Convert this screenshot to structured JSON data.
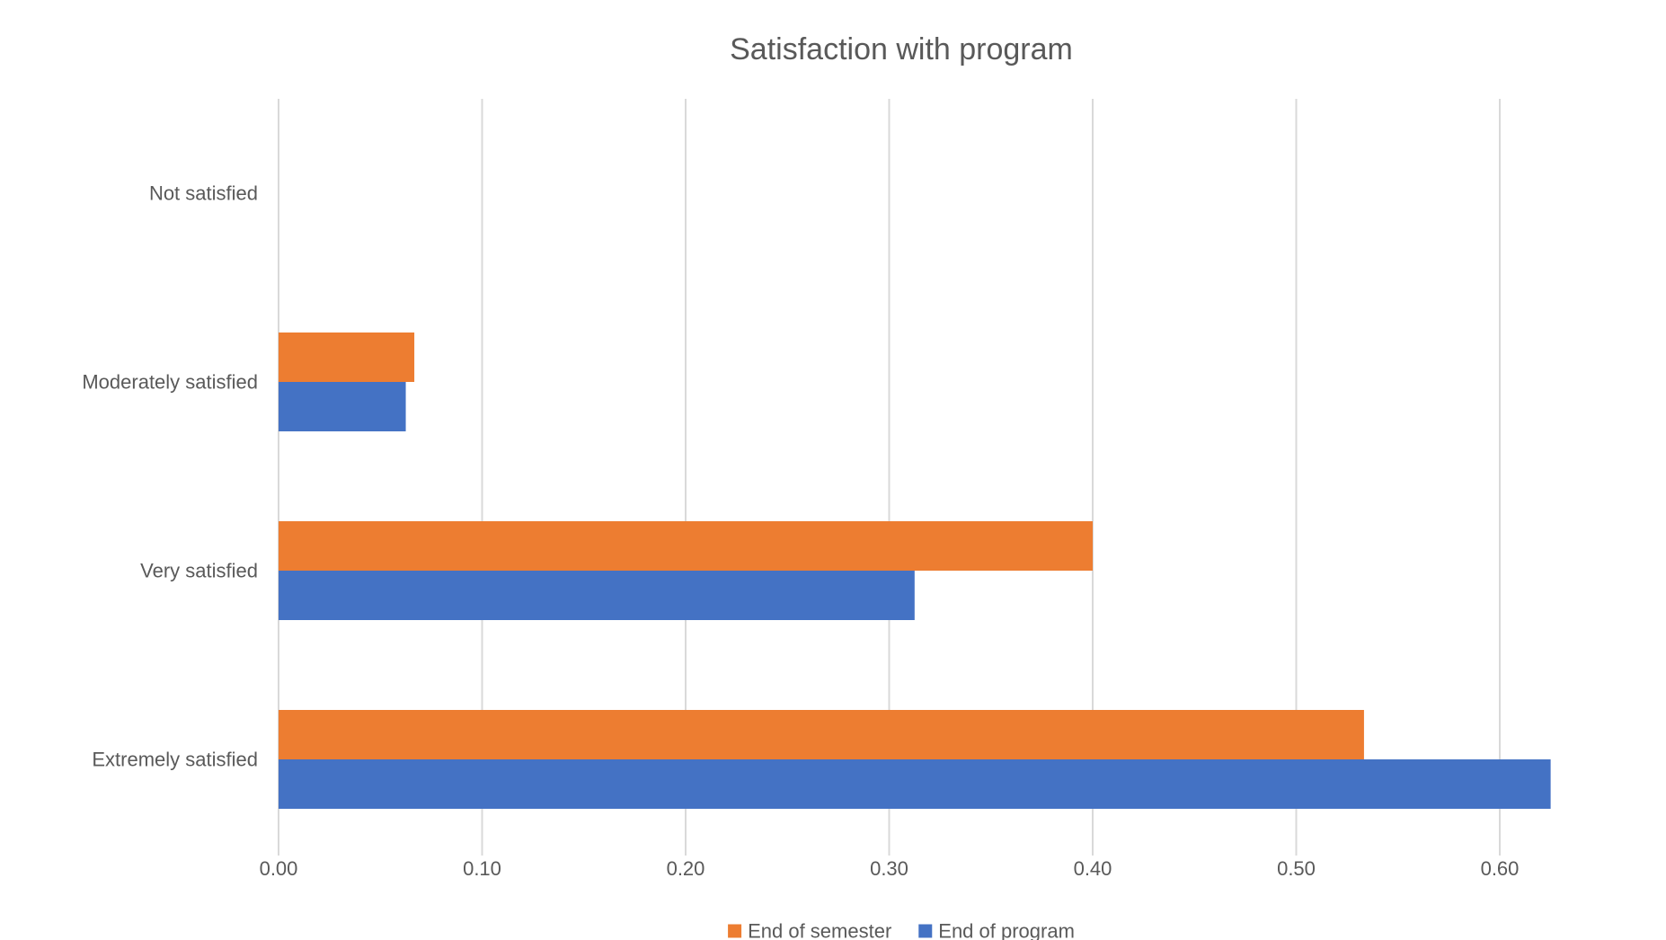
{
  "chart_data": {
    "type": "bar",
    "orientation": "horizontal",
    "title": "Satisfaction with program",
    "categories": [
      "Not satisfied",
      "Moderately satisfied",
      "Very satisfied",
      "Extremely satisfied"
    ],
    "series": [
      {
        "name": "End of semester",
        "color": "#ED7D31",
        "values": [
          0,
          0.0667,
          0.4,
          0.5333
        ]
      },
      {
        "name": "End of program",
        "color": "#4472C4",
        "values": [
          0,
          0.0625,
          0.3125,
          0.625
        ]
      }
    ],
    "x_axis": {
      "min": 0,
      "max": 0.6,
      "ticks": [
        "0.00",
        "0.10",
        "0.20",
        "0.30",
        "0.40",
        "0.50",
        "0.60"
      ]
    },
    "xlabel": "",
    "ylabel": "",
    "grid": true,
    "legend_position": "bottom"
  }
}
